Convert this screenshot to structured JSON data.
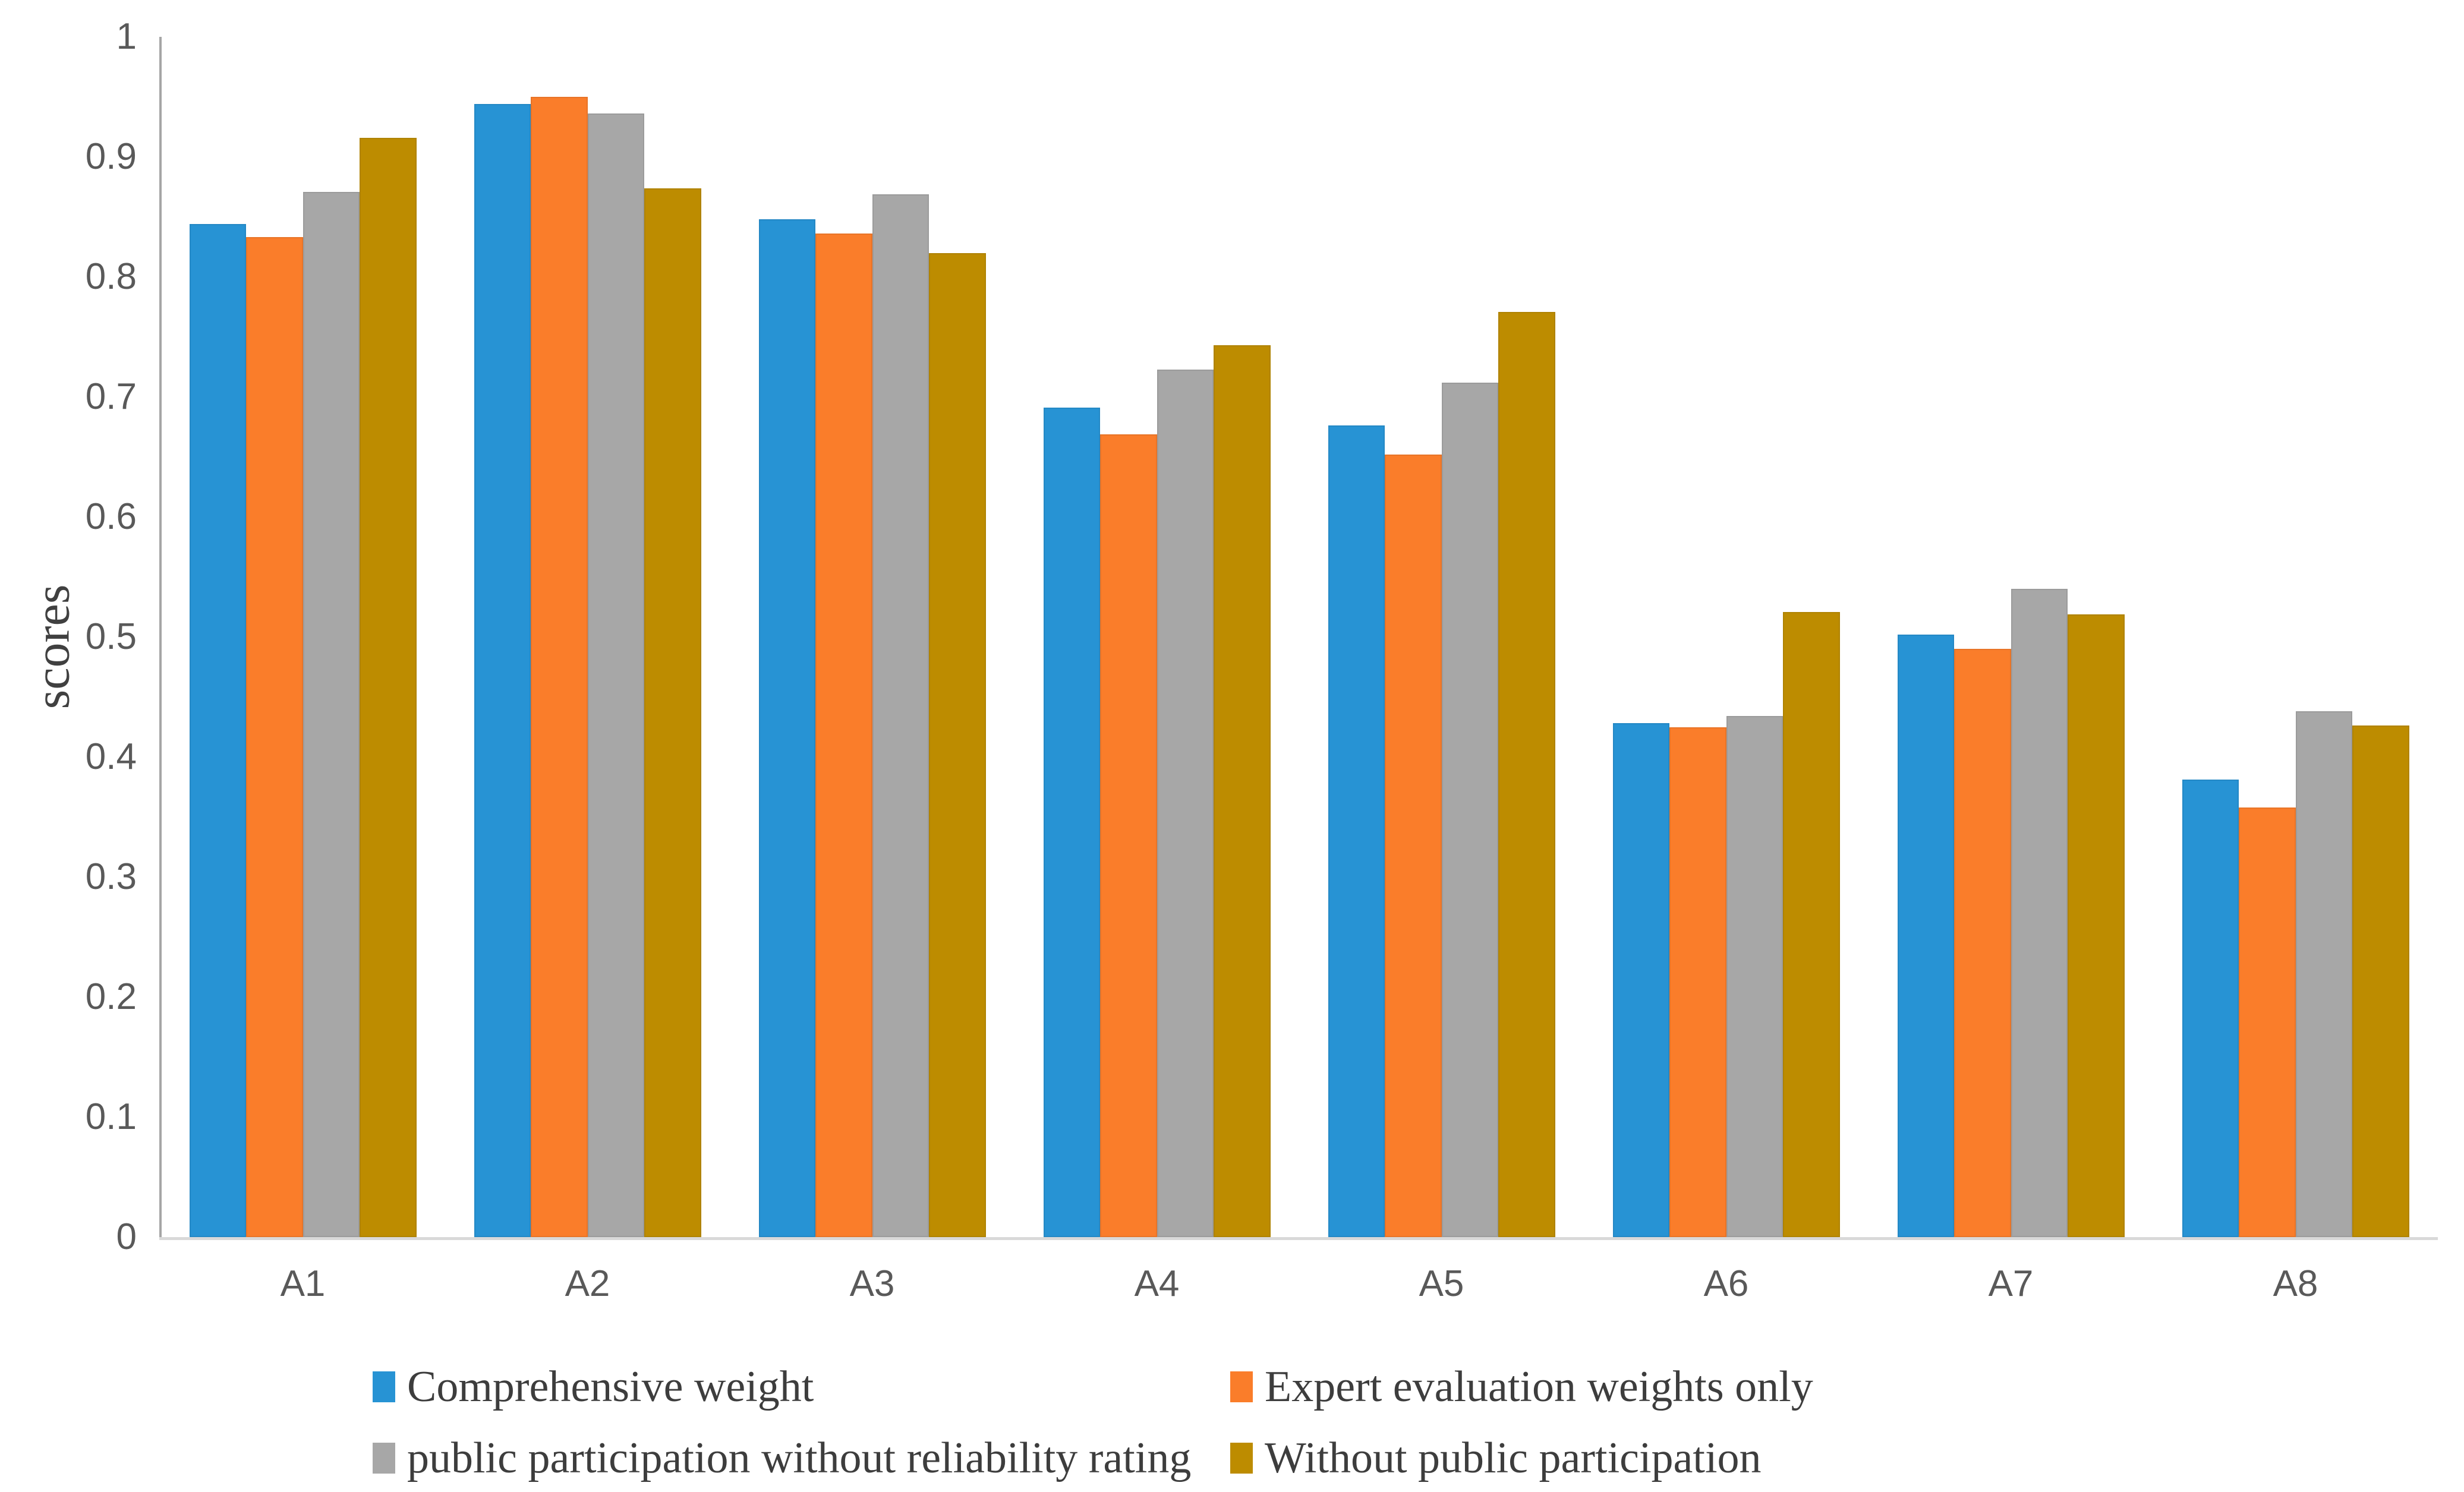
{
  "chart_data": {
    "type": "bar",
    "title": "",
    "xlabel": "",
    "ylabel": "scores",
    "ylim": [
      0,
      1
    ],
    "ytick_step": 0.1,
    "ytick_labels": [
      "1",
      "0.9",
      "0.8",
      "0.7",
      "0.6",
      "0.5",
      "0.4",
      "0.3",
      "0.2",
      "0.1",
      "0"
    ],
    "categories": [
      "A1",
      "A2",
      "A3",
      "A4",
      "A5",
      "A6",
      "A7",
      "A8"
    ],
    "series": [
      {
        "name": "Comprehensive weight",
        "color": "#2793d4",
        "values": [
          0.844,
          0.944,
          0.848,
          0.691,
          0.676,
          0.428,
          0.502,
          0.381
        ]
      },
      {
        "name": "Expert evaluation weights only",
        "color": "#fa7d2a",
        "values": [
          0.833,
          0.95,
          0.836,
          0.669,
          0.652,
          0.425,
          0.49,
          0.358
        ]
      },
      {
        "name": "public participation without reliability rating",
        "color": "#a7a7a7",
        "values": [
          0.871,
          0.936,
          0.869,
          0.723,
          0.712,
          0.434,
          0.54,
          0.438
        ]
      },
      {
        "name": "Without public participation",
        "color": "#bd8c00",
        "values": [
          0.916,
          0.874,
          0.82,
          0.743,
          0.771,
          0.521,
          0.519,
          0.426
        ]
      }
    ],
    "grid": false,
    "legend_position": "bottom"
  }
}
